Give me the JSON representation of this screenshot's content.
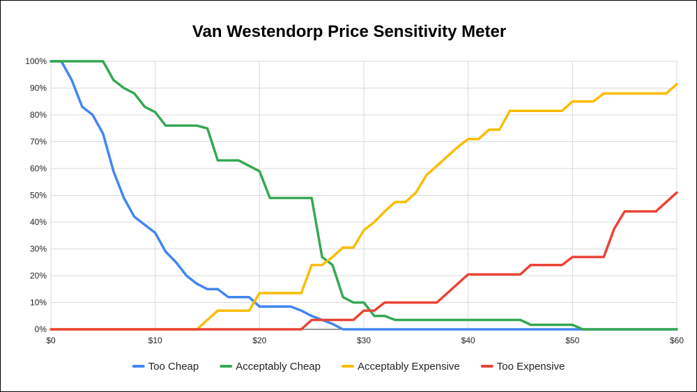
{
  "chart_data": {
    "type": "line",
    "title": "Van Westendorp Price Sensitivity Meter",
    "xlabel": "",
    "ylabel": "",
    "xlim": [
      0,
      60
    ],
    "ylim": [
      0,
      100
    ],
    "x_ticks": [
      "$0",
      "$10",
      "$20",
      "$30",
      "$40",
      "$50",
      "$60"
    ],
    "y_ticks": [
      "0%",
      "10%",
      "20%",
      "30%",
      "40%",
      "50%",
      "60%",
      "70%",
      "80%",
      "90%",
      "100%"
    ],
    "grid": true,
    "legend_position": "bottom",
    "series": [
      {
        "name": "Too Cheap",
        "color": "#4285F4",
        "points": [
          [
            0,
            100
          ],
          [
            1,
            100
          ],
          [
            2,
            93
          ],
          [
            3,
            83
          ],
          [
            4,
            80
          ],
          [
            5,
            73
          ],
          [
            6,
            59
          ],
          [
            7,
            49
          ],
          [
            8,
            42
          ],
          [
            9,
            39
          ],
          [
            10,
            36
          ],
          [
            11,
            29
          ],
          [
            12,
            25
          ],
          [
            13,
            20
          ],
          [
            14,
            17
          ],
          [
            15,
            15
          ],
          [
            16,
            15
          ],
          [
            17,
            12
          ],
          [
            18,
            12
          ],
          [
            19,
            12
          ],
          [
            20,
            8.5
          ],
          [
            21,
            8.5
          ],
          [
            22,
            8.5
          ],
          [
            23,
            8.5
          ],
          [
            24,
            7
          ],
          [
            25,
            5
          ],
          [
            26,
            3.5
          ],
          [
            27,
            2
          ],
          [
            28,
            0
          ],
          [
            60,
            0
          ]
        ]
      },
      {
        "name": "Acceptably Cheap",
        "color": "#34A853",
        "points": [
          [
            0,
            100
          ],
          [
            5,
            100
          ],
          [
            6,
            93
          ],
          [
            7,
            90
          ],
          [
            8,
            88
          ],
          [
            9,
            83
          ],
          [
            10,
            81
          ],
          [
            11,
            76
          ],
          [
            12,
            76
          ],
          [
            13,
            76
          ],
          [
            14,
            76
          ],
          [
            15,
            75
          ],
          [
            16,
            63
          ],
          [
            17,
            63
          ],
          [
            18,
            63
          ],
          [
            19,
            61
          ],
          [
            20,
            59
          ],
          [
            21,
            49
          ],
          [
            22,
            49
          ],
          [
            23,
            49
          ],
          [
            24,
            49
          ],
          [
            25,
            49
          ],
          [
            26,
            27
          ],
          [
            27,
            24
          ],
          [
            28,
            12
          ],
          [
            29,
            10
          ],
          [
            30,
            10
          ],
          [
            31,
            5
          ],
          [
            32,
            5
          ],
          [
            33,
            3.5
          ],
          [
            34,
            3.5
          ],
          [
            45,
            3.5
          ],
          [
            46,
            1.7
          ],
          [
            50,
            1.7
          ],
          [
            51,
            0
          ],
          [
            60,
            0
          ]
        ]
      },
      {
        "name": "Acceptably Expensive",
        "color": "#FBBC04",
        "points": [
          [
            0,
            0
          ],
          [
            14,
            0
          ],
          [
            15,
            3.5
          ],
          [
            16,
            7
          ],
          [
            19,
            7
          ],
          [
            20,
            13.5
          ],
          [
            24,
            13.5
          ],
          [
            25,
            24
          ],
          [
            26,
            24
          ],
          [
            27,
            27
          ],
          [
            28,
            30.5
          ],
          [
            29,
            30.5
          ],
          [
            30,
            37
          ],
          [
            31,
            40
          ],
          [
            32,
            44
          ],
          [
            33,
            47.5
          ],
          [
            34,
            47.5
          ],
          [
            35,
            51
          ],
          [
            36,
            57.5
          ],
          [
            37,
            61
          ],
          [
            38,
            64.5
          ],
          [
            39,
            68
          ],
          [
            40,
            71
          ],
          [
            41,
            71
          ],
          [
            42,
            74.5
          ],
          [
            43,
            74.5
          ],
          [
            44,
            81.5
          ],
          [
            49,
            81.5
          ],
          [
            50,
            85
          ],
          [
            52,
            85
          ],
          [
            53,
            88
          ],
          [
            59,
            88
          ],
          [
            60,
            91.5
          ]
        ]
      },
      {
        "name": "Too Expensive",
        "color": "#EA4335",
        "points": [
          [
            0,
            0
          ],
          [
            24,
            0
          ],
          [
            25,
            3.5
          ],
          [
            29,
            3.5
          ],
          [
            30,
            7
          ],
          [
            31,
            7
          ],
          [
            32,
            10
          ],
          [
            37,
            10
          ],
          [
            38,
            13.5
          ],
          [
            39,
            17
          ],
          [
            40,
            20.5
          ],
          [
            45,
            20.5
          ],
          [
            46,
            24
          ],
          [
            49,
            24
          ],
          [
            50,
            27
          ],
          [
            53,
            27
          ],
          [
            54,
            37.5
          ],
          [
            55,
            44
          ],
          [
            58,
            44
          ],
          [
            59,
            47.5
          ],
          [
            60,
            51
          ]
        ]
      }
    ]
  }
}
